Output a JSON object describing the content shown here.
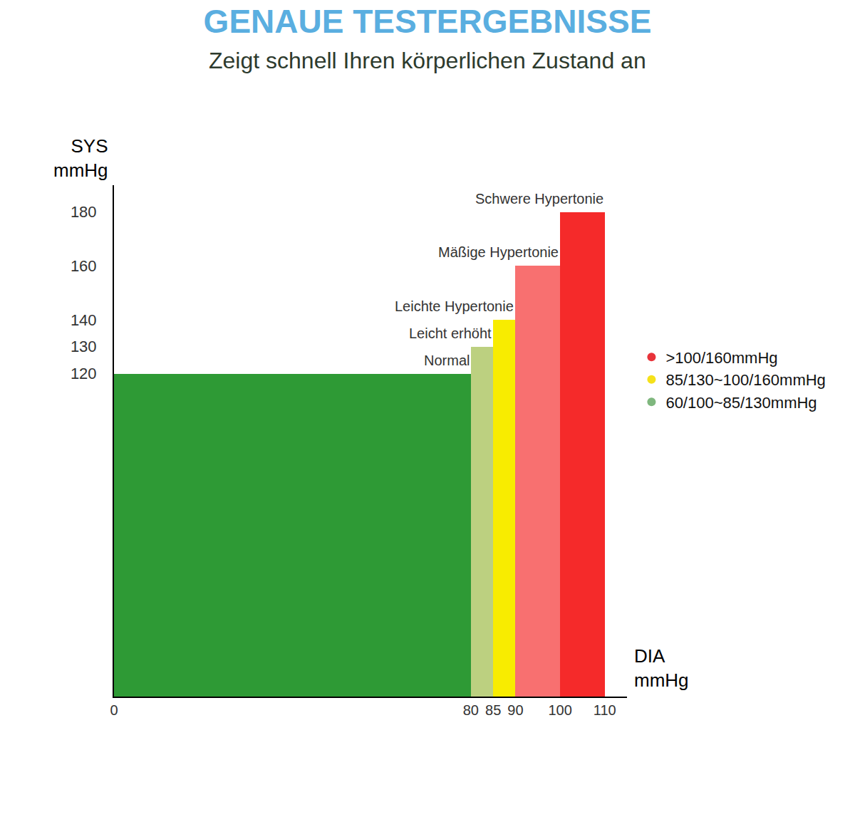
{
  "chart_data": {
    "type": "bar",
    "title": "GENAUE TESTERGEBNISSE",
    "subtitle": "Zeigt schnell Ihren körperlichen Zustand an",
    "x_label": "DIA mmHg",
    "y_label": "SYS mmHg",
    "categories": [
      "Normal",
      "Leicht erhöht",
      "Leichte Hypertonie",
      "Mäßige Hypertonie",
      "Schwere Hypertonie"
    ],
    "bins": [
      0,
      80,
      85,
      90,
      100,
      110
    ],
    "values": [
      120,
      130,
      140,
      160,
      180
    ],
    "colors": [
      "#2e9a35",
      "#bcd080",
      "#f8ec00",
      "#f87070",
      "#f52a2a"
    ],
    "xlim": [
      0,
      115
    ],
    "xticks": [
      0,
      80,
      85,
      90,
      100,
      110
    ],
    "ylim": [
      0,
      190
    ],
    "yticks": [
      120,
      130,
      140,
      160,
      180
    ],
    "grid": false,
    "legend": "right",
    "legend_entries": [
      {
        "name": ">100/160mmHg",
        "color": "#e8333a",
        "marker": "circle"
      },
      {
        "name": "85/130~100/160mmHg",
        "color": "#f5e11a",
        "marker": "circle"
      },
      {
        "name": "60/100~85/130mmHg",
        "color": "#7fb77e",
        "marker": "circle"
      }
    ]
  }
}
